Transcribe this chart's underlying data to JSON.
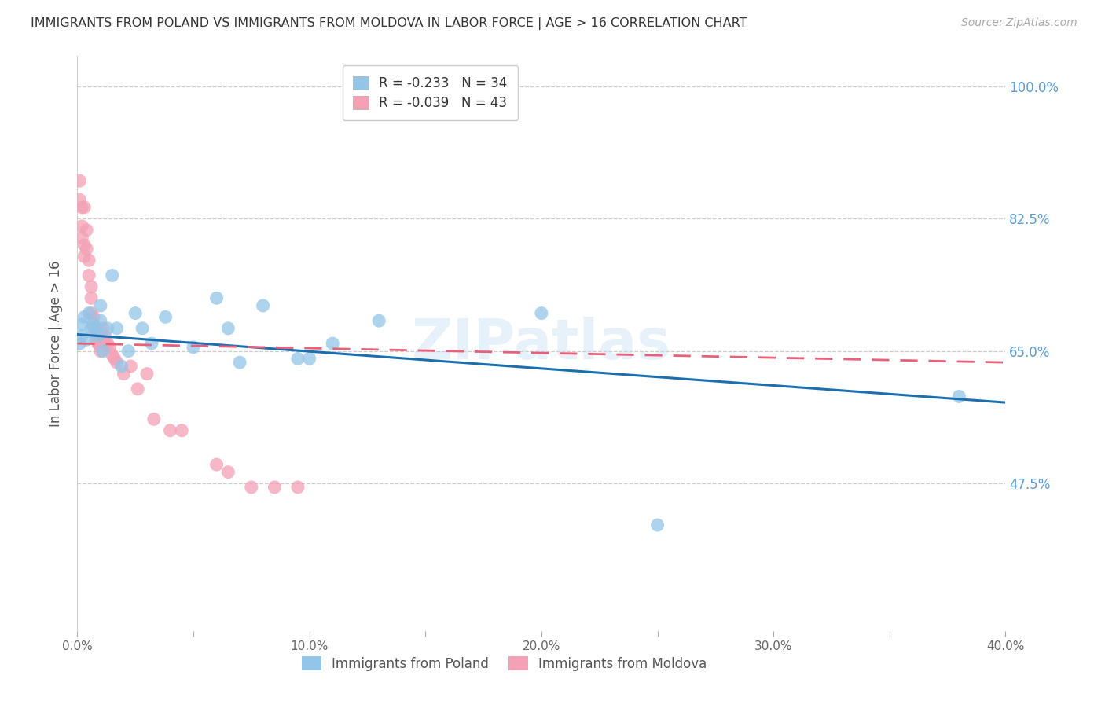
{
  "title": "IMMIGRANTS FROM POLAND VS IMMIGRANTS FROM MOLDOVA IN LABOR FORCE | AGE > 16 CORRELATION CHART",
  "source": "Source: ZipAtlas.com",
  "ylabel": "In Labor Force | Age > 16",
  "xlim": [
    0.0,
    0.4
  ],
  "ylim": [
    0.28,
    1.04
  ],
  "yticks": [
    0.475,
    0.65,
    0.825,
    1.0
  ],
  "ytick_labels": [
    "47.5%",
    "65.0%",
    "82.5%",
    "100.0%"
  ],
  "xticks": [
    0.0,
    0.05,
    0.1,
    0.15,
    0.2,
    0.25,
    0.3,
    0.35,
    0.4
  ],
  "xtick_labels": [
    "0.0%",
    "",
    "10.0%",
    "",
    "20.0%",
    "",
    "30.0%",
    "",
    "40.0%"
  ],
  "poland_color": "#92c5e8",
  "moldova_color": "#f4a0b5",
  "poland_trendline_color": "#1a6faf",
  "moldova_trendline_color": "#e8607a",
  "poland_R": -0.233,
  "poland_N": 34,
  "moldova_R": -0.039,
  "moldova_N": 43,
  "legend_label_poland": "Immigrants from Poland",
  "legend_label_moldova": "Immigrants from Moldova",
  "poland_x": [
    0.001,
    0.002,
    0.002,
    0.003,
    0.004,
    0.005,
    0.006,
    0.007,
    0.008,
    0.009,
    0.01,
    0.01,
    0.011,
    0.013,
    0.015,
    0.017,
    0.019,
    0.022,
    0.025,
    0.028,
    0.032,
    0.038,
    0.05,
    0.06,
    0.065,
    0.07,
    0.08,
    0.095,
    0.1,
    0.11,
    0.13,
    0.2,
    0.25,
    0.38
  ],
  "poland_y": [
    0.66,
    0.67,
    0.685,
    0.695,
    0.665,
    0.7,
    0.68,
    0.685,
    0.68,
    0.67,
    0.71,
    0.69,
    0.65,
    0.68,
    0.75,
    0.68,
    0.63,
    0.65,
    0.7,
    0.68,
    0.66,
    0.695,
    0.655,
    0.72,
    0.68,
    0.635,
    0.71,
    0.64,
    0.64,
    0.66,
    0.69,
    0.7,
    0.42,
    0.59
  ],
  "moldova_x": [
    0.001,
    0.001,
    0.002,
    0.002,
    0.002,
    0.003,
    0.003,
    0.003,
    0.004,
    0.004,
    0.005,
    0.005,
    0.006,
    0.006,
    0.006,
    0.007,
    0.007,
    0.008,
    0.008,
    0.009,
    0.009,
    0.01,
    0.01,
    0.011,
    0.012,
    0.012,
    0.013,
    0.014,
    0.015,
    0.016,
    0.017,
    0.02,
    0.023,
    0.026,
    0.03,
    0.033,
    0.04,
    0.045,
    0.06,
    0.065,
    0.075,
    0.085,
    0.095
  ],
  "moldova_y": [
    0.875,
    0.85,
    0.84,
    0.815,
    0.8,
    0.79,
    0.775,
    0.84,
    0.81,
    0.785,
    0.77,
    0.75,
    0.735,
    0.72,
    0.7,
    0.695,
    0.68,
    0.68,
    0.665,
    0.66,
    0.66,
    0.665,
    0.65,
    0.68,
    0.67,
    0.66,
    0.66,
    0.655,
    0.645,
    0.64,
    0.635,
    0.62,
    0.63,
    0.6,
    0.62,
    0.56,
    0.545,
    0.545,
    0.5,
    0.49,
    0.47,
    0.47,
    0.47
  ],
  "poland_trend_x": [
    0.0,
    0.4
  ],
  "poland_trend_y": [
    0.672,
    0.582
  ],
  "moldova_trend_x": [
    0.0,
    0.4
  ],
  "moldova_trend_y": [
    0.66,
    0.635
  ],
  "background_color": "#ffffff",
  "grid_color": "#cccccc",
  "title_color": "#333333",
  "axis_label_color": "#555555",
  "tick_color_right": "#5b9bd5",
  "tick_color_bottom": "#666666"
}
